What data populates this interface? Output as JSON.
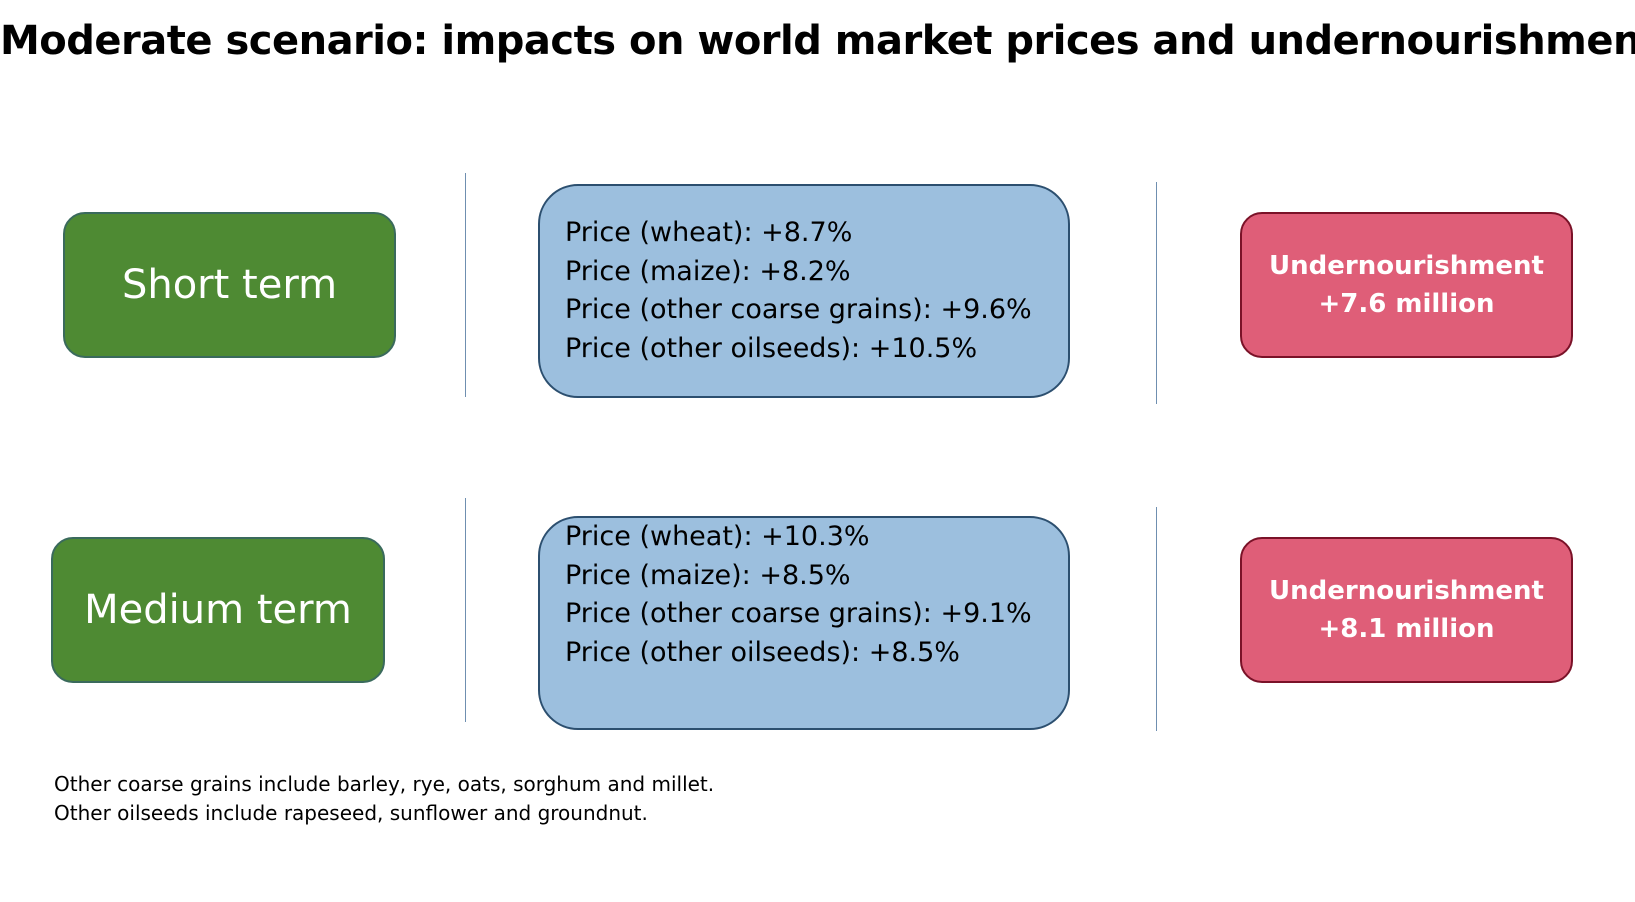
{
  "title": "Moderate scenario: impacts on world market prices and undernourishment",
  "rows": [
    {
      "term": "Short term",
      "prices": [
        "Price (wheat): +8.7%",
        "Price (maize): +8.2%",
        "Price (other coarse grains): +9.6%",
        "Price (other oilseeds): +10.5%"
      ],
      "undernourishment": {
        "label": "Undernourishment",
        "value": "+7.6 million"
      }
    },
    {
      "term": "Medium term",
      "prices": [
        "Price (wheat): +10.3%",
        "Price (maize): +8.5%",
        "Price (other coarse grains): +9.1%",
        "Price (other oilseeds): +8.5%"
      ],
      "undernourishment": {
        "label": "Undernourishment",
        "value": "+8.1 million"
      }
    }
  ],
  "notes": [
    "Other coarse grains include barley, rye, oats, sorghum and millet.",
    "Other oilseeds include rapeseed, sunflower and groundnut."
  ],
  "colors": {
    "term_box": "#4e8a33",
    "price_box": "#9cbfde",
    "undernourishment_box": "#df5e78"
  }
}
